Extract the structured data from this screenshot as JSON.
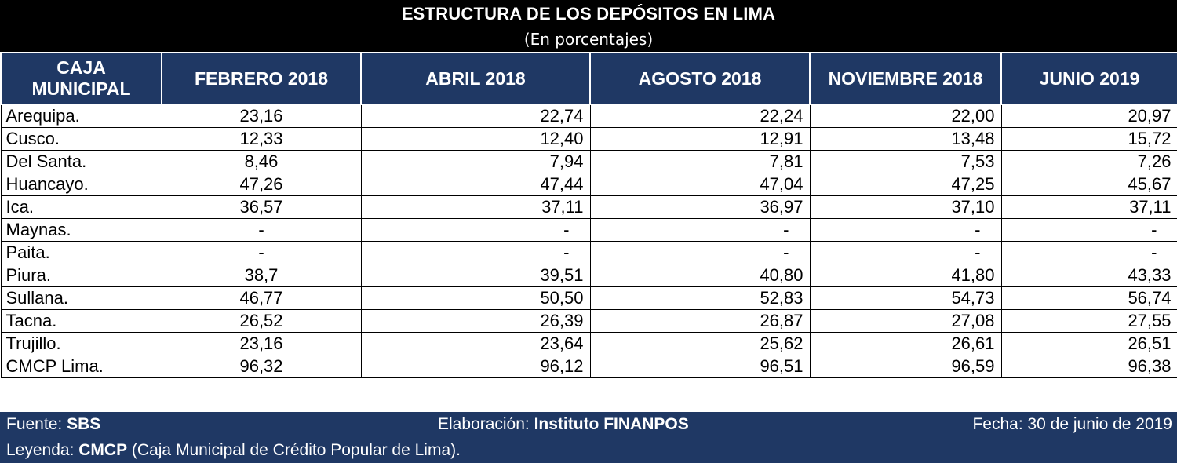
{
  "title": "ESTRUCTURA DE LOS DEPÓSITOS EN LIMA",
  "subtitle": "(En porcentajes)",
  "headers": {
    "caja_line1": "CAJA",
    "caja_line2": "MUNICIPAL",
    "periods": [
      "FEBRERO 2018",
      "ABRIL 2018",
      "AGOSTO 2018",
      "NOVIEMBRE 2018",
      "JUNIO 2019"
    ]
  },
  "rows": [
    {
      "name": "Arequipa.",
      "values": [
        "23,16",
        "22,74",
        "22,24",
        "22,00",
        "20,97"
      ]
    },
    {
      "name": "Cusco.",
      "values": [
        "12,33",
        "12,40",
        "12,91",
        "13,48",
        "15,72"
      ]
    },
    {
      "name": "Del Santa.",
      "values": [
        "8,46",
        "7,94",
        "7,81",
        "7,53",
        "7,26"
      ]
    },
    {
      "name": "Huancayo.",
      "values": [
        "47,26",
        "47,44",
        "47,04",
        "47,25",
        "45,67"
      ]
    },
    {
      "name": "Ica.",
      "values": [
        "36,57",
        "37,11",
        "36,97",
        "37,10",
        "37,11"
      ]
    },
    {
      "name": "Maynas.",
      "values": [
        "-",
        "-",
        "-",
        "-",
        "-"
      ]
    },
    {
      "name": "Paita.",
      "values": [
        "-",
        "-",
        "-",
        "-",
        "-"
      ]
    },
    {
      "name": "Piura.",
      "values": [
        "38,7",
        "39,51",
        "40,80",
        "41,80",
        "43,33"
      ]
    },
    {
      "name": "Sullana.",
      "values": [
        "46,77",
        "50,50",
        "52,83",
        "54,73",
        "56,74"
      ]
    },
    {
      "name": "Tacna.",
      "values": [
        "26,52",
        "26,39",
        "26,87",
        "27,08",
        "27,55"
      ]
    },
    {
      "name": "Trujillo.",
      "values": [
        "23,16",
        "23,64",
        "25,62",
        "26,61",
        "26,51"
      ]
    },
    {
      "name": "CMCP Lima.",
      "values": [
        "96,32",
        "96,12",
        "96,51",
        "96,59",
        "96,38"
      ]
    }
  ],
  "footer": {
    "source_label": "Fuente: ",
    "source_value": "SBS",
    "elab_label": "Elaboración: ",
    "elab_value": "Instituto FINANPOS",
    "date_text": "Fecha: 30 de junio de 2019",
    "legend_label": "Leyenda: ",
    "legend_abbr": "CMCP",
    "legend_text": " (Caja Municipal de Crédito Popular de Lima)."
  },
  "colors": {
    "header_bg": "#1f3864",
    "title_bg": "#000000",
    "header_text": "#ffffff"
  }
}
